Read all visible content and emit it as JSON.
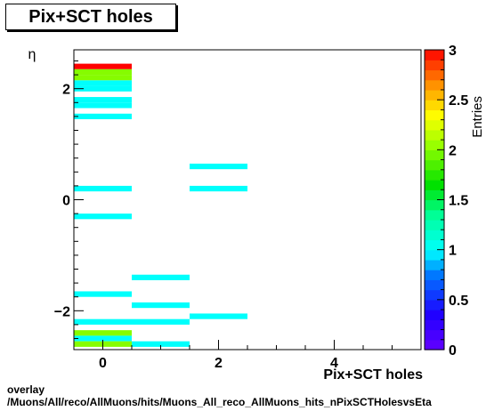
{
  "title": "Pix+SCT holes",
  "caption": {
    "line1": "overlay",
    "line2": "/Muons/All/reco/AllMuons/hits/Muons_All_reco_AllMuons_hits_nPixSCTHolesvsEta"
  },
  "chart_data": {
    "type": "heatmap",
    "xlabel": "Pix+SCT holes",
    "ylabel": "η",
    "zlabel": "Entries",
    "xlim": [
      -0.5,
      5.5
    ],
    "ylim": [
      -2.7,
      2.7
    ],
    "zlim": [
      0,
      3
    ],
    "x_ticks": [
      0,
      2,
      4
    ],
    "y_ticks": [
      -2,
      0,
      2
    ],
    "z_ticks": [
      0,
      0.5,
      1,
      1.5,
      2,
      2.5,
      3
    ],
    "bin_width_x": 1,
    "bin_height_y": 0.1,
    "cells": [
      {
        "x": 0,
        "y": 2.4,
        "v": 3
      },
      {
        "x": 0,
        "y": 2.3,
        "v": 2
      },
      {
        "x": 0,
        "y": 2.2,
        "v": 2
      },
      {
        "x": 0,
        "y": 2.1,
        "v": 1
      },
      {
        "x": 0,
        "y": 2.0,
        "v": 1
      },
      {
        "x": 0,
        "y": 1.8,
        "v": 1
      },
      {
        "x": 0,
        "y": 1.7,
        "v": 1
      },
      {
        "x": 0,
        "y": 1.5,
        "v": 1
      },
      {
        "x": 0,
        "y": 0.2,
        "v": 1
      },
      {
        "x": 0,
        "y": -0.3,
        "v": 1
      },
      {
        "x": 0,
        "y": -1.7,
        "v": 1
      },
      {
        "x": 0,
        "y": -2.2,
        "v": 1
      },
      {
        "x": 0,
        "y": -2.4,
        "v": 2
      },
      {
        "x": 0,
        "y": -2.5,
        "v": 1
      },
      {
        "x": 0,
        "y": -2.6,
        "v": 2
      },
      {
        "x": 1,
        "y": -1.4,
        "v": 1
      },
      {
        "x": 1,
        "y": -1.9,
        "v": 1
      },
      {
        "x": 1,
        "y": -2.2,
        "v": 1
      },
      {
        "x": 1,
        "y": -2.6,
        "v": 1
      },
      {
        "x": 2,
        "y": 0.6,
        "v": 1
      },
      {
        "x": 2,
        "y": 0.2,
        "v": 1
      },
      {
        "x": 2,
        "y": -2.1,
        "v": 1
      }
    ]
  }
}
